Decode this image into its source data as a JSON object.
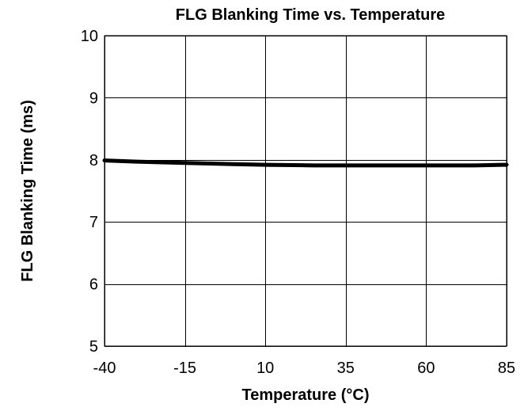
{
  "chart_data": {
    "type": "line",
    "title": "FLG Blanking Time vs. Temperature",
    "xlabel": "Temperature (°C)",
    "ylabel": "FLG Blanking Time (ms)",
    "xlim": [
      -40,
      85
    ],
    "ylim": [
      5,
      10
    ],
    "x_ticks": [
      -40,
      -15,
      10,
      35,
      60,
      85
    ],
    "x_tick_labels": [
      "-40",
      "-15",
      "10",
      "35",
      "60",
      "85"
    ],
    "y_ticks": [
      5,
      6,
      7,
      8,
      9,
      10
    ],
    "y_tick_labels": [
      "5",
      "6",
      "7",
      "8",
      "9",
      "10"
    ],
    "grid": true,
    "legend": "none",
    "series": [
      {
        "color": "#000000",
        "x": [
          -40,
          -30,
          -15,
          0,
          10,
          25,
          35,
          50,
          60,
          75,
          85
        ],
        "y": [
          7.99,
          7.97,
          7.95,
          7.93,
          7.92,
          7.91,
          7.91,
          7.91,
          7.91,
          7.91,
          7.92
        ]
      }
    ]
  }
}
